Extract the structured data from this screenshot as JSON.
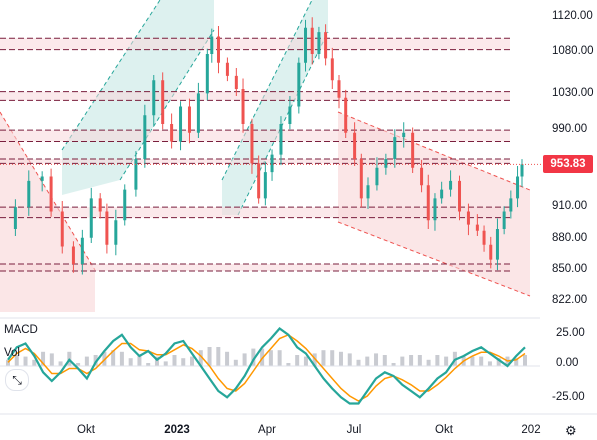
{
  "panes": {
    "macd_label": "MACD",
    "vol_label": "Vol"
  },
  "price": {
    "last": "953.83",
    "last_value": 953.83,
    "last_color": "#f23645",
    "y_ticks": [
      "1120.00",
      "1080.00",
      "1030.00",
      "990.00",
      "910.00",
      "880.00",
      "850.00",
      "822.00"
    ]
  },
  "macd": {
    "y_ticks": [
      "25.00",
      "0.00",
      "-25.00"
    ]
  },
  "x_axis": {
    "labels": [
      "Okt",
      "2023",
      "Apr",
      "Jul",
      "Okt",
      "202"
    ]
  },
  "colors": {
    "up": "#26a69a",
    "down": "#ef5350",
    "macd": "#26a69a",
    "signal": "#ff9800",
    "zone_fill": "#f8d7da",
    "zone_line": "#7a1f3d",
    "channel_up": "#26a69a",
    "channel_down": "#ef5350"
  },
  "icons": {
    "expand": "expand-icon",
    "settings": "gear-icon"
  },
  "chart_data": [
    {
      "type": "candlestick",
      "title": "",
      "y_axis_ticks": [
        1120,
        1080,
        1030,
        990,
        910,
        880,
        850,
        822
      ],
      "x_axis_labels": [
        "Okt",
        "2023",
        "Apr",
        "Jul",
        "Okt",
        "202"
      ],
      "last_price": 953.83,
      "horizontal_zones": [
        {
          "low": 1085,
          "high": 1098
        },
        {
          "low": 1027,
          "high": 1037
        },
        {
          "low": 980,
          "high": 993
        },
        {
          "low": 955,
          "high": 960
        },
        {
          "low": 893,
          "high": 905
        },
        {
          "low": 832,
          "high": 840
        }
      ],
      "close_path": [
        [
          0,
          880
        ],
        [
          6,
          905
        ],
        [
          12,
          935
        ],
        [
          18,
          940
        ],
        [
          22,
          900
        ],
        [
          27,
          860
        ],
        [
          32,
          840
        ],
        [
          36,
          870
        ],
        [
          40,
          915
        ],
        [
          44,
          900
        ],
        [
          47,
          862
        ],
        [
          51,
          890
        ],
        [
          55,
          925
        ],
        [
          60,
          960
        ],
        [
          64,
          1010
        ],
        [
          68,
          1050
        ],
        [
          72,
          1000
        ],
        [
          76,
          980
        ],
        [
          80,
          1020
        ],
        [
          84,
          990
        ],
        [
          88,
          1035
        ],
        [
          92,
          1080
        ],
        [
          94,
          1100
        ],
        [
          97,
          1070
        ],
        [
          101,
          1055
        ],
        [
          105,
          1040
        ],
        [
          108,
          1000
        ],
        [
          112,
          955
        ],
        [
          115,
          915
        ],
        [
          118,
          945
        ],
        [
          121,
          965
        ],
        [
          125,
          1000
        ],
        [
          129,
          1020
        ],
        [
          133,
          1070
        ],
        [
          136,
          1110
        ],
        [
          139,
          1080
        ],
        [
          142,
          1105
        ],
        [
          145,
          1075
        ],
        [
          148,
          1050
        ],
        [
          151,
          1030
        ],
        [
          154,
          990
        ],
        [
          158,
          960
        ],
        [
          161,
          915
        ],
        [
          164,
          930
        ],
        [
          168,
          950
        ],
        [
          172,
          960
        ],
        [
          176,
          985
        ],
        [
          180,
          990
        ],
        [
          184,
          950
        ],
        [
          188,
          930
        ],
        [
          191,
          890
        ],
        [
          194,
          915
        ],
        [
          197,
          925
        ],
        [
          201,
          935
        ],
        [
          205,
          900
        ],
        [
          209,
          885
        ],
        [
          213,
          878
        ],
        [
          216,
          862
        ],
        [
          219,
          845
        ],
        [
          222,
          880
        ],
        [
          225,
          900
        ],
        [
          228,
          915
        ],
        [
          231,
          940
        ],
        [
          233,
          953.83
        ]
      ]
    },
    {
      "type": "line",
      "title": "MACD",
      "y_axis_ticks": [
        25,
        0,
        -25
      ],
      "series": [
        {
          "name": "MACD",
          "values": [
            5,
            15,
            18,
            8,
            -5,
            -12,
            -5,
            5,
            -2,
            -10,
            3,
            12,
            20,
            25,
            15,
            8,
            12,
            5,
            10,
            18,
            20,
            10,
            0,
            -10,
            -20,
            -25,
            -18,
            -8,
            5,
            15,
            22,
            30,
            25,
            15,
            10,
            0,
            -10,
            -18,
            -25,
            -30,
            -30,
            -20,
            -10,
            -5,
            -8,
            -15,
            -20,
            -25,
            -18,
            -10,
            -5,
            5,
            8,
            12,
            15,
            10,
            5,
            0,
            8,
            15
          ]
        },
        {
          "name": "Signal",
          "values": [
            3,
            10,
            14,
            10,
            2,
            -6,
            -6,
            -2,
            -2,
            -6,
            -2,
            5,
            12,
            18,
            18,
            13,
            12,
            9,
            9,
            13,
            17,
            14,
            8,
            0,
            -10,
            -18,
            -20,
            -14,
            -4,
            6,
            14,
            22,
            25,
            20,
            14,
            6,
            -2,
            -10,
            -18,
            -24,
            -28,
            -24,
            -16,
            -10,
            -8,
            -11,
            -15,
            -20,
            -20,
            -15,
            -9,
            -2,
            4,
            8,
            11,
            11,
            8,
            4,
            5,
            10
          ]
        }
      ]
    }
  ]
}
